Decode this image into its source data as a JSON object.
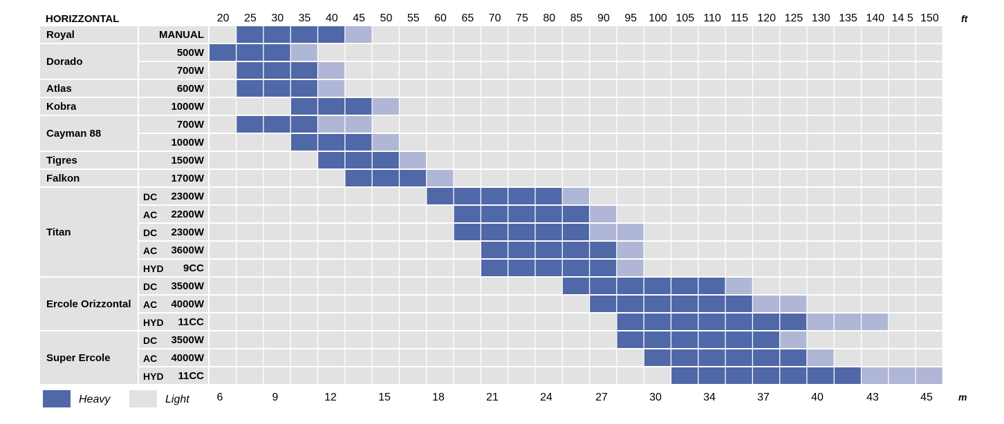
{
  "chart_data": {
    "type": "table",
    "title": "HORIZZONTAL",
    "ft_unit": "ft",
    "m_unit": "m",
    "ft_ticks": [
      "20",
      "25",
      "30",
      "35",
      "40",
      "45",
      "50",
      "55",
      "60",
      "65",
      "70",
      "75",
      "80",
      "85",
      "90",
      "95",
      "100",
      "105",
      "110",
      "115",
      "120",
      "125",
      "130",
      "135",
      "140",
      "14 5",
      "150"
    ],
    "m_ticks": [
      "6",
      "9",
      "12",
      "15",
      "18",
      "21",
      "24",
      "27",
      "30",
      "34",
      "37",
      "40",
      "43",
      "45"
    ],
    "legend": [
      {
        "label": "Heavy",
        "color": "#5068a8"
      },
      {
        "label": "Light",
        "color": "#e0e0e0"
      }
    ],
    "colors": {
      "heavy": "#5068a8",
      "light": "#b0b6d5",
      "empty": "#e2e2e2"
    },
    "groups": [
      {
        "name": "Royal",
        "rows": [
          {
            "prefix": "",
            "power": "MANUAL",
            "heavy": [
              25,
              40
            ],
            "light": [
              45,
              45
            ]
          }
        ]
      },
      {
        "name": "Dorado",
        "rows": [
          {
            "prefix": "",
            "power": "500W",
            "heavy": [
              20,
              30
            ],
            "light": [
              35,
              35
            ]
          },
          {
            "prefix": "",
            "power": "700W",
            "heavy": [
              25,
              35
            ],
            "light": [
              40,
              40
            ]
          }
        ]
      },
      {
        "name": "Atlas",
        "rows": [
          {
            "prefix": "",
            "power": "600W",
            "heavy": [
              25,
              35
            ],
            "light": [
              40,
              40
            ]
          }
        ]
      },
      {
        "name": "Kobra",
        "rows": [
          {
            "prefix": "",
            "power": "1000W",
            "heavy": [
              35,
              45
            ],
            "light": [
              50,
              50
            ]
          }
        ]
      },
      {
        "name": "Cayman 88",
        "rows": [
          {
            "prefix": "",
            "power": "700W",
            "heavy": [
              25,
              35
            ],
            "light": [
              40,
              45
            ]
          },
          {
            "prefix": "",
            "power": "1000W",
            "heavy": [
              35,
              45
            ],
            "light": [
              50,
              50
            ]
          }
        ]
      },
      {
        "name": "Tigres",
        "rows": [
          {
            "prefix": "",
            "power": "1500W",
            "heavy": [
              40,
              50
            ],
            "light": [
              55,
              55
            ]
          }
        ]
      },
      {
        "name": "Falkon",
        "rows": [
          {
            "prefix": "",
            "power": "1700W",
            "heavy": [
              45,
              55
            ],
            "light": [
              60,
              60
            ]
          }
        ]
      },
      {
        "name": "Titan",
        "rows": [
          {
            "prefix": "DC",
            "power": "2300W",
            "heavy": [
              60,
              80
            ],
            "light": [
              85,
              85
            ]
          },
          {
            "prefix": "AC",
            "power": "2200W",
            "heavy": [
              65,
              85
            ],
            "light": [
              90,
              90
            ]
          },
          {
            "prefix": "DC",
            "power": "2300W",
            "heavy": [
              65,
              85
            ],
            "light": [
              90,
              95
            ]
          },
          {
            "prefix": "AC",
            "power": "3600W",
            "heavy": [
              70,
              90
            ],
            "light": [
              95,
              95
            ]
          },
          {
            "prefix": "HYD",
            "power": "9CC",
            "heavy": [
              70,
              90
            ],
            "light": [
              95,
              95
            ]
          }
        ]
      },
      {
        "name": "Ercole Orizzontal",
        "rows": [
          {
            "prefix": "DC",
            "power": "3500W",
            "heavy": [
              85,
              110
            ],
            "light": [
              115,
              115
            ]
          },
          {
            "prefix": "AC",
            "power": "4000W",
            "heavy": [
              90,
              115
            ],
            "light": [
              120,
              125
            ]
          },
          {
            "prefix": "HYD",
            "power": "11CC",
            "heavy": [
              95,
              125
            ],
            "light": [
              130,
              140
            ]
          }
        ]
      },
      {
        "name": "Super Ercole",
        "rows": [
          {
            "prefix": "DC",
            "power": "3500W",
            "heavy": [
              95,
              120
            ],
            "light": [
              125,
              125
            ]
          },
          {
            "prefix": "AC",
            "power": "4000W",
            "heavy": [
              100,
              125
            ],
            "light": [
              130,
              130
            ]
          },
          {
            "prefix": "HYD",
            "power": "11CC",
            "heavy": [
              105,
              135
            ],
            "light": [
              140,
              150
            ]
          }
        ]
      }
    ]
  }
}
